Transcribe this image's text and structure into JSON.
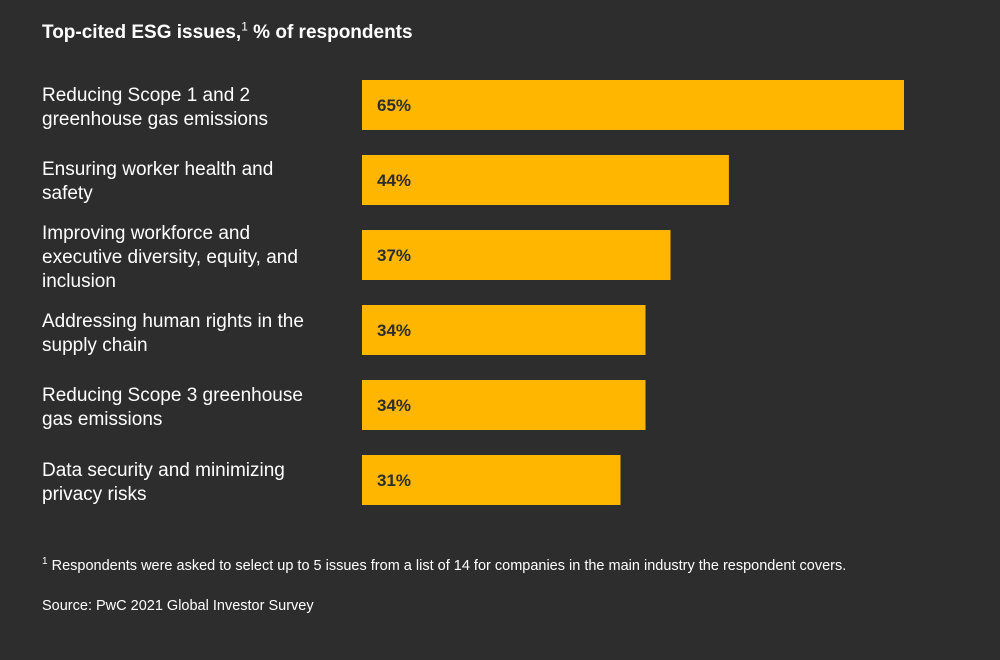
{
  "chart_data": {
    "type": "bar",
    "orientation": "horizontal",
    "title": "Top-cited ESG issues,",
    "title_superscript": "1",
    "title_suffix": "% of respondents",
    "categories": [
      "Reducing Scope 1 and 2 greenhouse gas emissions",
      "Ensuring worker health and safety",
      "Improving workforce and executive diversity, equity, and inclusion",
      "Addressing human rights in the supply chain",
      "Reducing Scope 3 greenhouse gas emissions",
      "Data security and minimizing privacy risks"
    ],
    "values": [
      65,
      44,
      37,
      34,
      34,
      31
    ],
    "value_labels": [
      "65%",
      "44%",
      "37%",
      "34%",
      "34%",
      "31%"
    ],
    "xlim": [
      0,
      100
    ],
    "grid": false,
    "legend": "none"
  },
  "colors": {
    "background": "#2d2d2d",
    "bar": "#ffb600",
    "bar_label": "#2d2d2d",
    "text": "#ffffff"
  },
  "footnote": {
    "marker": "1",
    "text": "Respondents were asked to select up to 5 issues from a list of 14 for companies in the main industry the respondent covers."
  },
  "source": "Source: PwC 2021 Global Investor Survey"
}
